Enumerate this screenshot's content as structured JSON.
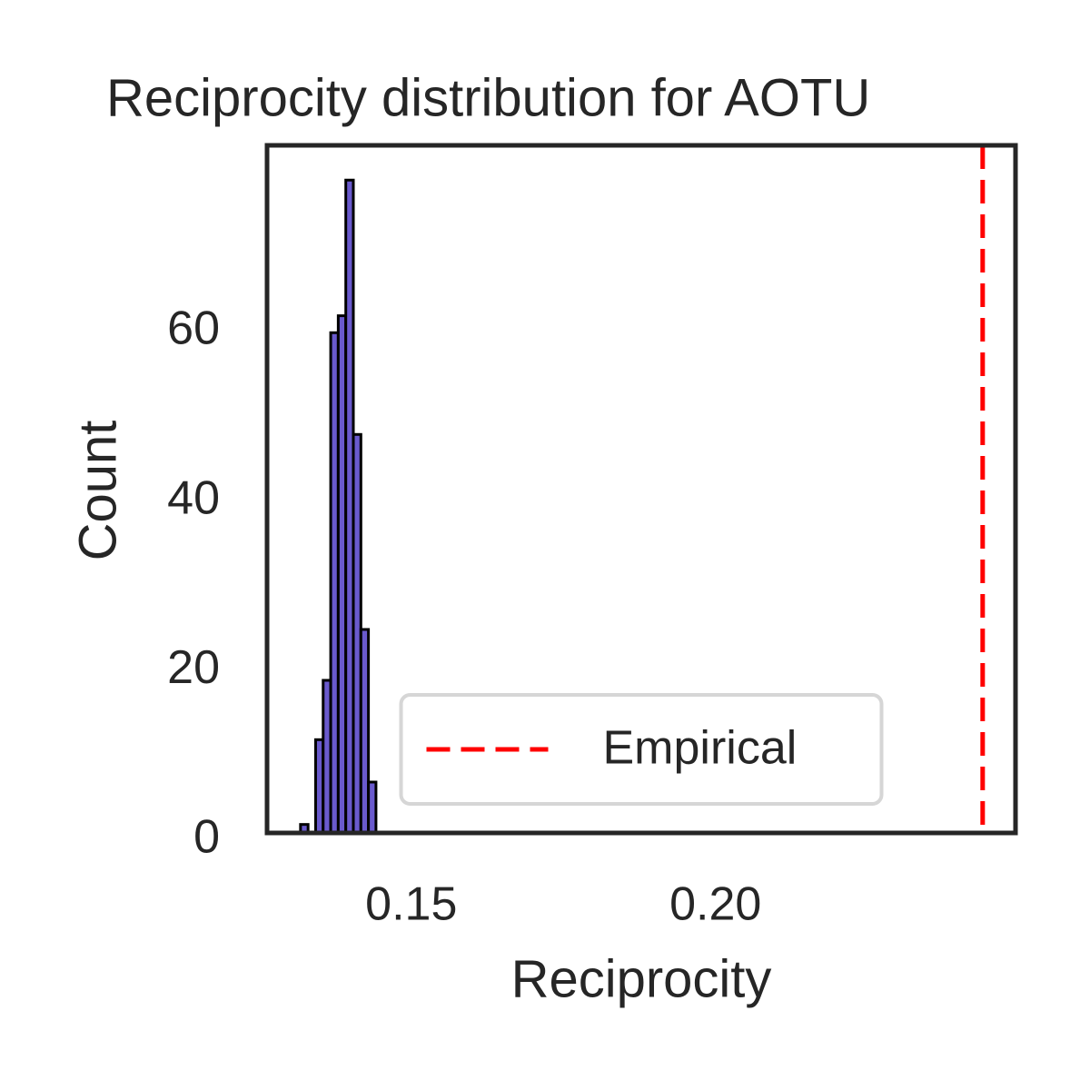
{
  "chart_data": {
    "type": "histogram",
    "title": "Reciprocity distribution for AOTU",
    "x_label": "Reciprocity",
    "y_label": "Count",
    "bins": [
      0.1318,
      0.13304,
      0.13428,
      0.13552,
      0.13676,
      0.138,
      0.13924,
      0.14048,
      0.14172,
      0.14296,
      0.1442
    ],
    "counts": [
      1,
      0,
      11,
      18,
      59,
      61,
      77,
      47,
      24,
      6
    ],
    "color": "#6a5acd",
    "edge_color": "#000000",
    "xlim": [
      0.1263,
      0.2493
    ],
    "ylim": [
      0,
      81.1
    ],
    "xticks": [
      0.15,
      {
        "value": 0.2,
        "label": "0.20"
      }
    ],
    "yticks": [
      0,
      20,
      40,
      60
    ],
    "grid": false,
    "vline": {
      "name": "Empirical",
      "value": 0.2439,
      "color": "#ff0000",
      "dashed": true
    },
    "legend": "lower center"
  }
}
